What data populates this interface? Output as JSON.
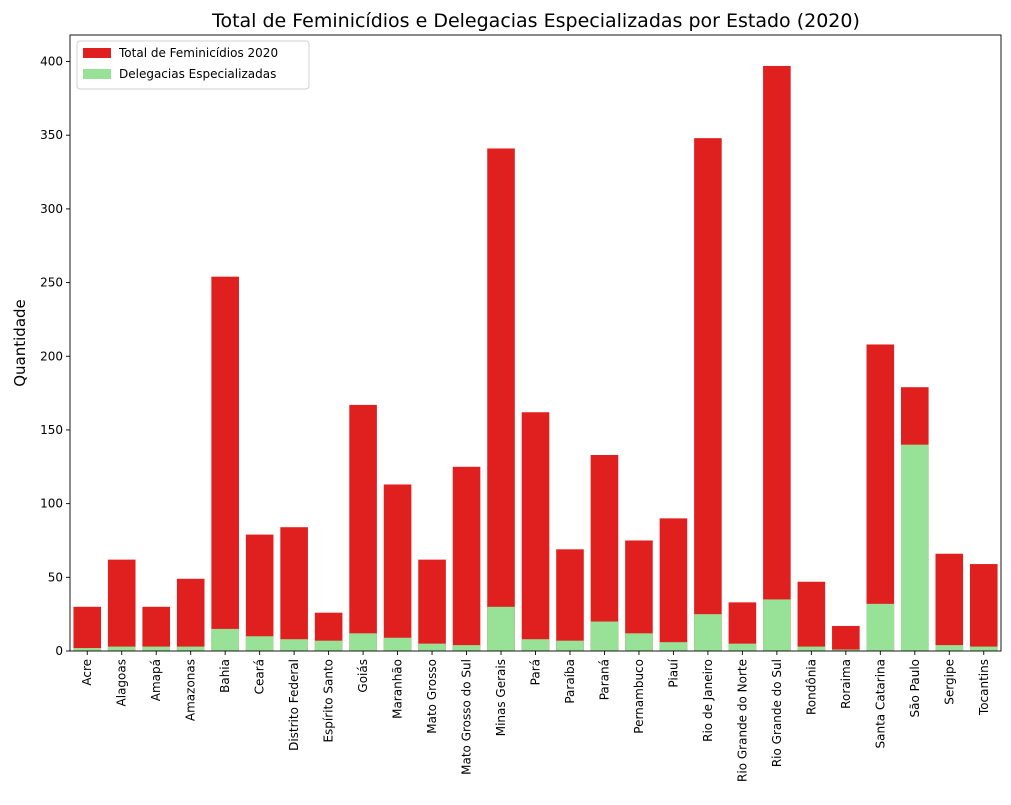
{
  "chart_data": {
    "type": "bar",
    "title": "Total de Feminicídios e Delegacias Especializadas por Estado (2020)",
    "xlabel": "",
    "ylabel": "Quantidade",
    "ylim": [
      0,
      418
    ],
    "yticks": [
      0,
      50,
      100,
      150,
      200,
      250,
      300,
      350,
      400
    ],
    "grid": false,
    "legend_position": "top-left",
    "bar_mode": "overlay",
    "categories": [
      "Acre",
      "Alagoas",
      "Amapá",
      "Amazonas",
      "Bahia",
      "Ceará",
      "Distrito Federal",
      "Espírito Santo",
      "Goiás",
      "Maranhão",
      "Mato Grosso",
      "Mato Grosso do Sul",
      "Minas Gerais",
      "Pará",
      "Paraíba",
      "Paraná",
      "Pernambuco",
      "Piauí",
      "Rio de Janeiro",
      "Rio Grande do Norte",
      "Rio Grande do Sul",
      "Rondônia",
      "Roraima",
      "Santa Catarina",
      "São Paulo",
      "Sergipe",
      "Tocantins"
    ],
    "series": [
      {
        "name": "Total de Feminicídios 2020",
        "color": "#e01f1f",
        "values": [
          30,
          62,
          30,
          49,
          254,
          79,
          84,
          26,
          167,
          113,
          62,
          125,
          341,
          162,
          69,
          133,
          75,
          90,
          348,
          33,
          397,
          47,
          17,
          208,
          179,
          66,
          59
        ]
      },
      {
        "name": "Delegacias Especializadas",
        "color": "#98e298",
        "values": [
          2,
          3,
          3,
          3,
          15,
          10,
          8,
          7,
          12,
          9,
          5,
          4,
          30,
          8,
          7,
          20,
          12,
          6,
          25,
          5,
          35,
          3,
          1,
          32,
          140,
          4,
          3
        ]
      }
    ]
  }
}
